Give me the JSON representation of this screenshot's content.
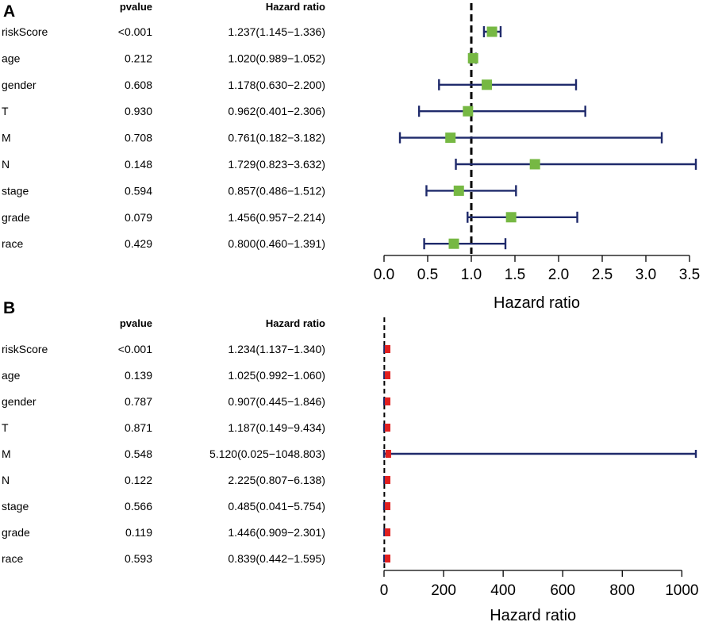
{
  "chart_data": [
    {
      "panel_label": "A",
      "type": "forest",
      "col_pvalue": "pvalue",
      "col_hr": "Hazard ratio",
      "xlabel": "Hazard ratio",
      "xlim": [
        0,
        3.6
      ],
      "ticks": [
        "0.0",
        "0.5",
        "1.0",
        "1.5",
        "2.0",
        "2.5",
        "3.0",
        "3.5"
      ],
      "tick_values": [
        0,
        0.5,
        1.0,
        1.5,
        2.0,
        2.5,
        3.0,
        3.5
      ],
      "reference_line": 1,
      "marker_color": "#76b843",
      "line_color": "#1f2a6b",
      "rows": [
        {
          "name": "riskScore",
          "pvalue": "<0.001",
          "hr_text": "1.237(1.145−1.336)",
          "hr": 1.237,
          "lo": 1.145,
          "hi": 1.336
        },
        {
          "name": "age",
          "pvalue": "0.212",
          "hr_text": "1.020(0.989−1.052)",
          "hr": 1.02,
          "lo": 0.989,
          "hi": 1.052
        },
        {
          "name": "gender",
          "pvalue": "0.608",
          "hr_text": "1.178(0.630−2.200)",
          "hr": 1.178,
          "lo": 0.63,
          "hi": 2.2
        },
        {
          "name": "T",
          "pvalue": "0.930",
          "hr_text": "0.962(0.401−2.306)",
          "hr": 0.962,
          "lo": 0.401,
          "hi": 2.306
        },
        {
          "name": "M",
          "pvalue": "0.708",
          "hr_text": "0.761(0.182−3.182)",
          "hr": 0.761,
          "lo": 0.182,
          "hi": 3.182
        },
        {
          "name": "N",
          "pvalue": "0.148",
          "hr_text": "1.729(0.823−3.632)",
          "hr": 1.729,
          "lo": 0.823,
          "hi": 3.632
        },
        {
          "name": "stage",
          "pvalue": "0.594",
          "hr_text": "0.857(0.486−1.512)",
          "hr": 0.857,
          "lo": 0.486,
          "hi": 1.512
        },
        {
          "name": "grade",
          "pvalue": "0.079",
          "hr_text": "1.456(0.957−2.214)",
          "hr": 1.456,
          "lo": 0.957,
          "hi": 2.214
        },
        {
          "name": "race",
          "pvalue": "0.429",
          "hr_text": "0.800(0.460−1.391)",
          "hr": 0.8,
          "lo": 0.46,
          "hi": 1.391
        }
      ]
    },
    {
      "panel_label": "B",
      "type": "forest",
      "col_pvalue": "pvalue",
      "col_hr": "Hazard ratio",
      "xlabel": "Hazard ratio",
      "xlim": [
        0,
        1055
      ],
      "ticks": [
        "0",
        "200",
        "400",
        "600",
        "800",
        "1000"
      ],
      "tick_values": [
        0,
        200,
        400,
        600,
        800,
        1000
      ],
      "reference_line": 1,
      "marker_color": "#e02020",
      "line_color": "#1f2a6b",
      "rows": [
        {
          "name": "riskScore",
          "pvalue": "<0.001",
          "hr_text": "1.234(1.137−1.340)",
          "hr": 1.234,
          "lo": 1.137,
          "hi": 1.34
        },
        {
          "name": "age",
          "pvalue": "0.139",
          "hr_text": "1.025(0.992−1.060)",
          "hr": 1.025,
          "lo": 0.992,
          "hi": 1.06
        },
        {
          "name": "gender",
          "pvalue": "0.787",
          "hr_text": "0.907(0.445−1.846)",
          "hr": 0.907,
          "lo": 0.445,
          "hi": 1.846
        },
        {
          "name": "T",
          "pvalue": "0.871",
          "hr_text": "1.187(0.149−9.434)",
          "hr": 1.187,
          "lo": 0.149,
          "hi": 9.434
        },
        {
          "name": "M",
          "pvalue": "0.548",
          "hr_text": "5.120(0.025−1048.803)",
          "hr": 5.12,
          "lo": 0.025,
          "hi": 1048.803
        },
        {
          "name": "N",
          "pvalue": "0.122",
          "hr_text": "2.225(0.807−6.138)",
          "hr": 2.225,
          "lo": 0.807,
          "hi": 6.138
        },
        {
          "name": "stage",
          "pvalue": "0.566",
          "hr_text": "0.485(0.041−5.754)",
          "hr": 0.485,
          "lo": 0.041,
          "hi": 5.754
        },
        {
          "name": "grade",
          "pvalue": "0.119",
          "hr_text": "1.446(0.909−2.301)",
          "hr": 1.446,
          "lo": 0.909,
          "hi": 2.301
        },
        {
          "name": "race",
          "pvalue": "0.593",
          "hr_text": "0.839(0.442−1.595)",
          "hr": 0.839,
          "lo": 0.442,
          "hi": 1.595
        }
      ]
    }
  ]
}
